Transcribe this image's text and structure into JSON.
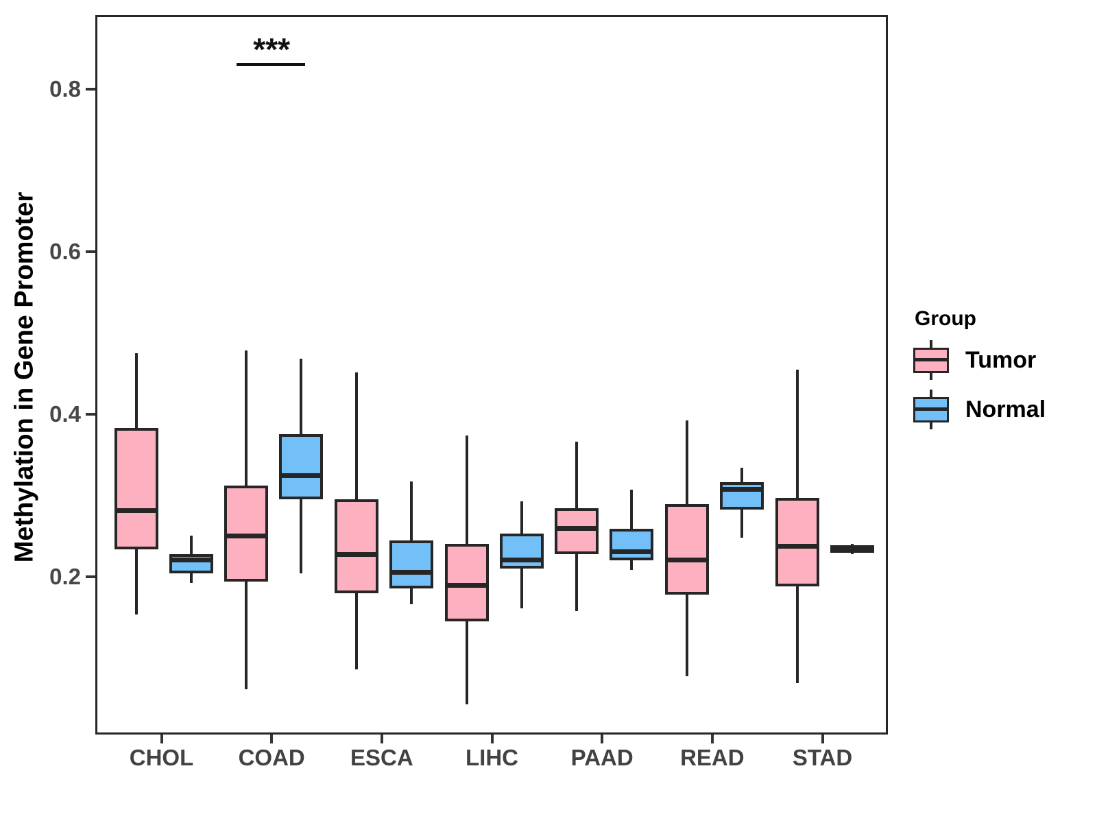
{
  "y_axis": {
    "title": "Methylation in Gene Promoter",
    "tick_labels": [
      "0.8",
      "0.6",
      "0.4",
      "0.2"
    ],
    "tick_values": [
      0.8,
      0.6,
      0.4,
      0.2
    ]
  },
  "x_axis": {
    "categories": [
      "CHOL",
      "COAD",
      "ESCA",
      "LIHC",
      "PAAD",
      "READ",
      "STAD"
    ]
  },
  "legend": {
    "title": "Group",
    "items": [
      {
        "label": "Tumor",
        "color": "#FDB0C0"
      },
      {
        "label": "Normal",
        "color": "#73BFF7"
      }
    ]
  },
  "annotation": {
    "text": "***",
    "category": "COAD"
  },
  "colors": {
    "stroke": "#262626",
    "panel_border": "#262626",
    "axis_text": "#474747",
    "background": "#FFFFFF"
  },
  "chart_data": {
    "type": "boxplot",
    "title": "",
    "xlabel": "",
    "ylabel": "Methylation in Gene Promoter",
    "ylim": [
      0.006,
      0.891
    ],
    "yticks": [
      0.2,
      0.4,
      0.6,
      0.8
    ],
    "grid": false,
    "legend_position": "right",
    "categories": [
      "CHOL",
      "COAD",
      "ESCA",
      "LIHC",
      "PAAD",
      "READ",
      "STAD"
    ],
    "series": [
      {
        "name": "Tumor",
        "color": "#FDB0C0",
        "boxes": [
          {
            "category": "CHOL",
            "min": 0.156,
            "q1": 0.236,
            "median": 0.284,
            "q3": 0.386,
            "max": 0.478
          },
          {
            "category": "COAD",
            "min": 0.064,
            "q1": 0.197,
            "median": 0.253,
            "q3": 0.315,
            "max": 0.481
          },
          {
            "category": "ESCA",
            "min": 0.089,
            "q1": 0.182,
            "median": 0.23,
            "q3": 0.298,
            "max": 0.454
          },
          {
            "category": "LIHC",
            "min": 0.046,
            "q1": 0.148,
            "median": 0.192,
            "q3": 0.243,
            "max": 0.376
          },
          {
            "category": "PAAD",
            "min": 0.16,
            "q1": 0.23,
            "median": 0.262,
            "q3": 0.287,
            "max": 0.369
          },
          {
            "category": "READ",
            "min": 0.08,
            "q1": 0.181,
            "median": 0.223,
            "q3": 0.292,
            "max": 0.395
          },
          {
            "category": "STAD",
            "min": 0.072,
            "q1": 0.191,
            "median": 0.24,
            "q3": 0.3,
            "max": 0.457
          }
        ]
      },
      {
        "name": "Normal",
        "color": "#73BFF7",
        "boxes": [
          {
            "category": "CHOL",
            "min": 0.195,
            "q1": 0.207,
            "median": 0.223,
            "q3": 0.23,
            "max": 0.253
          },
          {
            "category": "COAD",
            "min": 0.207,
            "q1": 0.298,
            "median": 0.327,
            "q3": 0.378,
            "max": 0.471
          },
          {
            "category": "ESCA",
            "min": 0.169,
            "q1": 0.188,
            "median": 0.208,
            "q3": 0.247,
            "max": 0.32
          },
          {
            "category": "LIHC",
            "min": 0.164,
            "q1": 0.213,
            "median": 0.223,
            "q3": 0.256,
            "max": 0.295
          },
          {
            "category": "PAAD",
            "min": 0.211,
            "q1": 0.223,
            "median": 0.233,
            "q3": 0.262,
            "max": 0.31
          },
          {
            "category": "READ",
            "min": 0.251,
            "q1": 0.285,
            "median": 0.31,
            "q3": 0.319,
            "max": 0.337
          },
          {
            "category": "STAD",
            "min": 0.23,
            "q1": 0.232,
            "median": 0.237,
            "q3": 0.241,
            "max": 0.243
          }
        ]
      }
    ],
    "annotations": [
      {
        "text": "***",
        "category": "COAD",
        "y_line": 0.832,
        "y_text": 0.85
      }
    ]
  }
}
